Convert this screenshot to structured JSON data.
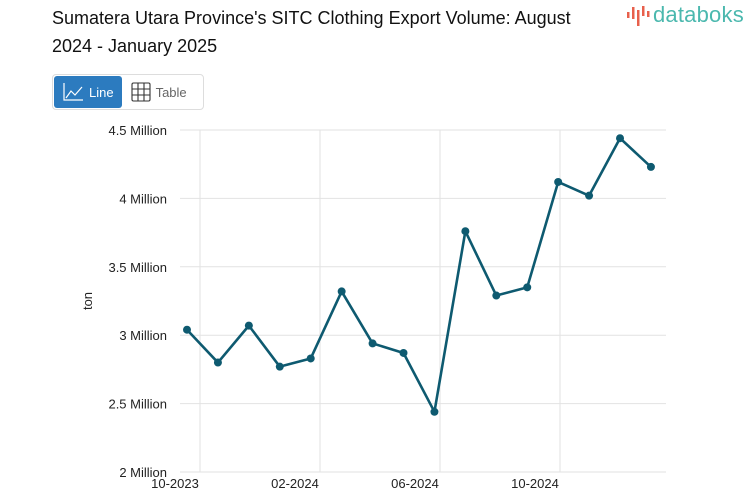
{
  "header": {
    "title": "Sumatera Utara Province's SITC Clothing Export Volume: August 2024 - January 2025",
    "logo_text": "databoks"
  },
  "toggle": {
    "line_label": "Line",
    "table_label": "Table",
    "active": "Line"
  },
  "colors": {
    "line": "#0e5a70",
    "active_button": "#2c7bbf",
    "logo_text": "#4bb8ae",
    "logo_bars": "#e8604c"
  },
  "chart_data": {
    "type": "line",
    "title": "Sumatera Utara Province's SITC Clothing Export Volume: August 2024 - January 2025",
    "ylabel": "ton",
    "xlabel": "",
    "x": [
      "10-2023",
      "11-2023",
      "12-2023",
      "01-2024",
      "02-2024",
      "03-2024",
      "04-2024",
      "05-2024",
      "06-2024",
      "07-2024",
      "08-2024",
      "09-2024",
      "10-2024",
      "11-2024",
      "12-2024",
      "01-2025"
    ],
    "values": [
      3040000,
      2800000,
      3070000,
      2770000,
      2830000,
      3320000,
      2940000,
      2870000,
      2440000,
      3760000,
      3290000,
      3350000,
      4120000,
      4020000,
      4440000,
      4230000
    ],
    "ylim": [
      2000000,
      4500000
    ],
    "yticks": [
      {
        "v": 2000000,
        "label": "2 Million"
      },
      {
        "v": 2500000,
        "label": "2.5 Million"
      },
      {
        "v": 3000000,
        "label": "3 Million"
      },
      {
        "v": 3500000,
        "label": "3.5 Million"
      },
      {
        "v": 4000000,
        "label": "4 Million"
      },
      {
        "v": 4500000,
        "label": "4.5 Million"
      }
    ],
    "xticks": [
      "10-2023",
      "02-2024",
      "06-2024",
      "10-2024"
    ],
    "grid": true,
    "legend": "none"
  }
}
